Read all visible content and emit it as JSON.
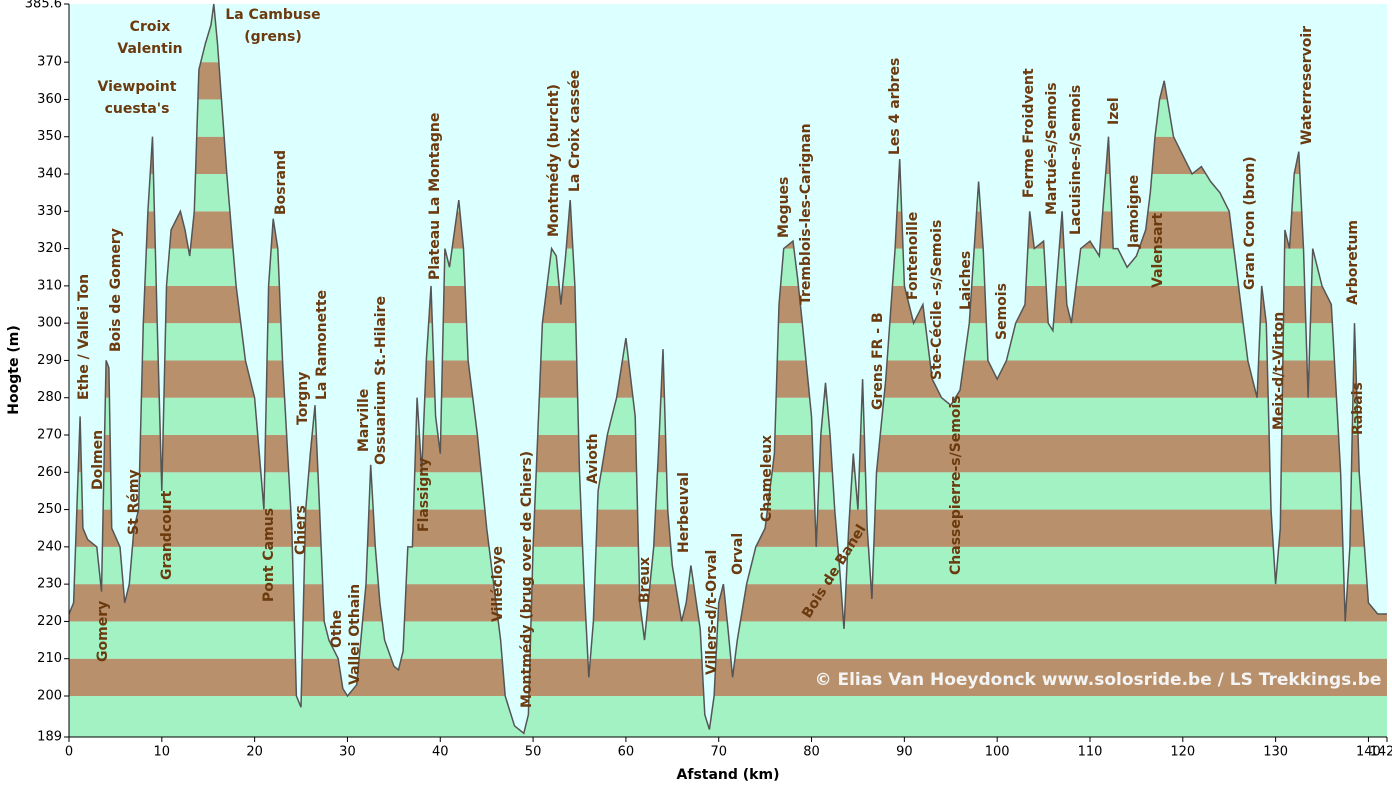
{
  "chart_data": {
    "type": "elevation",
    "y_label": "Hoogte (m)",
    "x_label": "Afstand   (km)",
    "credit": "© Elias Van Hoeydonck www.solosride.be  /  LS Trekkings.be",
    "xlim": [
      0,
      142
    ],
    "ylim": [
      189,
      385.6
    ],
    "xticks": [
      0,
      10,
      20,
      30,
      40,
      50,
      60,
      70,
      80,
      90,
      100,
      110,
      120,
      130,
      140,
      142
    ],
    "yticks": [
      189,
      200,
      210,
      220,
      230,
      240,
      250,
      260,
      270,
      280,
      290,
      300,
      310,
      320,
      330,
      340,
      350,
      360,
      370,
      385.6
    ],
    "line_color": "#555555",
    "band_colors": [
      "#a2f2c4",
      "#b8916c"
    ],
    "sky_color": "#dcffff",
    "x": [
      0,
      0.5,
      1.2,
      1.5,
      2,
      3,
      3.5,
      4,
      4.3,
      4.6,
      5.5,
      6,
      6.5,
      7,
      7.5,
      8,
      8.5,
      9,
      9.5,
      10,
      10.5,
      11,
      12,
      12.5,
      13,
      13.5,
      14,
      14.7,
      15.3,
      15.6,
      16,
      17,
      18,
      19,
      20,
      20.5,
      21,
      21.5,
      22,
      22.5,
      23,
      24,
      24.5,
      25,
      25.5,
      26,
      26.5,
      27,
      27.5,
      28,
      29,
      29.5,
      30,
      31,
      32,
      32.5,
      33,
      33.5,
      34,
      35,
      35.5,
      36,
      36.5,
      37,
      37.5,
      38,
      38.5,
      39,
      39.5,
      40,
      40.5,
      41,
      42,
      42.5,
      43,
      44,
      45,
      46,
      46.5,
      47,
      48,
      49,
      49.5,
      50,
      51,
      52,
      52.5,
      53,
      53.5,
      54,
      54.5,
      55,
      55.5,
      56,
      56.5,
      57,
      58,
      59,
      60,
      61,
      61.5,
      62,
      63,
      63.5,
      64,
      64.5,
      65,
      66,
      66.5,
      67,
      68,
      68.5,
      69,
      69.5,
      70,
      70.5,
      71,
      71.5,
      72,
      73,
      74,
      75,
      76,
      76.5,
      77,
      78,
      78.5,
      79,
      80,
      80.5,
      81,
      81.5,
      82,
      82.5,
      83,
      83.5,
      84,
      84.5,
      85,
      85.5,
      86,
      86.5,
      87,
      88,
      89,
      89.5,
      90,
      91,
      92,
      93,
      94,
      95,
      96,
      97,
      98,
      98.5,
      99,
      100,
      101,
      102,
      103,
      103.5,
      104,
      105,
      105.5,
      106,
      107,
      107.5,
      108,
      109,
      110,
      111,
      112,
      112.5,
      113,
      114,
      115,
      116,
      116.5,
      117,
      117.5,
      118,
      119,
      120,
      121,
      122,
      123,
      124,
      125,
      126,
      127,
      127.5,
      128,
      128.5,
      129,
      129.5,
      130,
      130.5,
      131,
      131.5,
      132,
      132.5,
      133,
      133.5,
      134,
      135,
      136,
      137,
      137.5,
      138,
      138.5,
      139,
      140,
      141,
      142
    ],
    "values": [
      222,
      225,
      275,
      245,
      242,
      240,
      228,
      290,
      288,
      245,
      240,
      225,
      230,
      245,
      250,
      300,
      330,
      350,
      300,
      255,
      310,
      325,
      330,
      325,
      318,
      330,
      368,
      375,
      380,
      385.6,
      375,
      340,
      310,
      290,
      280,
      265,
      250,
      310,
      328,
      320,
      290,
      245,
      200,
      197,
      250,
      265,
      278,
      250,
      220,
      215,
      210,
      202,
      200,
      203,
      230,
      262,
      240,
      225,
      215,
      208,
      207,
      212,
      240,
      240,
      280,
      260,
      290,
      310,
      275,
      265,
      320,
      315,
      333,
      320,
      290,
      270,
      245,
      225,
      215,
      200,
      192,
      190,
      195,
      240,
      300,
      320,
      318,
      305,
      318,
      333,
      310,
      260,
      230,
      205,
      220,
      255,
      270,
      280,
      296,
      275,
      225,
      215,
      240,
      265,
      293,
      250,
      235,
      220,
      225,
      235,
      218,
      195,
      191,
      200,
      225,
      230,
      218,
      205,
      215,
      230,
      240,
      245,
      265,
      305,
      320,
      322,
      312,
      300,
      275,
      240,
      270,
      284,
      270,
      250,
      235,
      218,
      245,
      265,
      250,
      285,
      245,
      226,
      260,
      285,
      320,
      344,
      310,
      300,
      305,
      285,
      280,
      278,
      282,
      300,
      338,
      320,
      290,
      285,
      290,
      300,
      305,
      330,
      320,
      322,
      300,
      298,
      330,
      305,
      300,
      320,
      322,
      318,
      350,
      320,
      320,
      315,
      318,
      325,
      335,
      350,
      360,
      365,
      350,
      345,
      340,
      342,
      338,
      335,
      330,
      310,
      290,
      285,
      280,
      310,
      300,
      250,
      230,
      245,
      325,
      320,
      340,
      346,
      320,
      280,
      320,
      310,
      305,
      260,
      220,
      240,
      300,
      260,
      225,
      222,
      222
    ],
    "annotations": [
      [
        "Croix",
        "Valentin"
      ],
      [
        "La Cambuse",
        "(grens)"
      ],
      [
        "Viewpoint",
        "cuesta's"
      ],
      "Ethe  /  Vallei Ton",
      "Dolmen",
      "Gomery",
      "Bois de Gomery",
      "St Rémy",
      "Grandcourt",
      "Bosrand",
      "Pont Camus",
      "Torgny",
      "La Ramonette",
      "Chiers",
      "Othe",
      "Vallei Othain",
      "Marville",
      "Ossuarium St.-Hilaire",
      "Flassigny",
      "Plateau La Montagne",
      "Villécloye",
      "Montmédy (brug over de Chiers)",
      "Montmédy (burcht)",
      "La Croix cassée",
      "Avioth",
      "Breux",
      "Herbeuval",
      "Villers-d/t-Orval",
      "Orval",
      "Chameleux",
      "Mogues",
      "Tremblois-les-Carignan",
      "Bois de Banel",
      "Grens FR - B",
      "Les 4 arbres",
      "Fontenoille",
      "Ste-Cécile -s/Semois",
      "Chassepierre-s/Semois",
      "Laiches",
      "Semois",
      "Ferme Froidvent",
      "Martué-s/Semois",
      "Lacuisine-s/Semois",
      "Izel",
      "Jamoigne",
      "Valensart",
      "Gran Cron (bron)",
      "Meix-d/t-Virton",
      "Waterreservoir",
      "Arboretum",
      "Rabais"
    ]
  }
}
